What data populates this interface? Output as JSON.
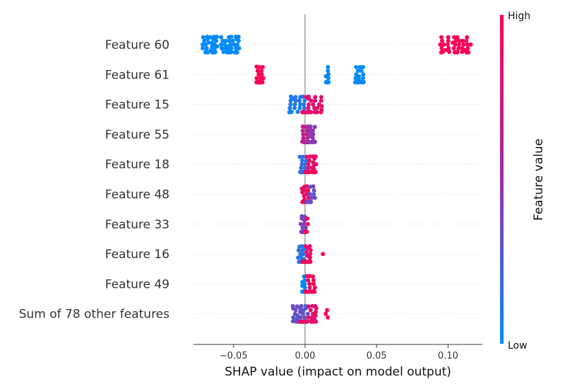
{
  "chart_data": {
    "type": "scatter",
    "subtype": "beeswarm",
    "xlabel": "SHAP value (impact on model output)",
    "xlim": [
      -0.078,
      0.124
    ],
    "xticks": [
      -0.05,
      0.0,
      0.05,
      0.1
    ],
    "xtick_labels": [
      "−0.05",
      "0.00",
      "0.05",
      "0.10"
    ],
    "grid": false,
    "colorbar": {
      "label": "Feature value",
      "high_label": "High",
      "low_label": "Low",
      "low_color": "#008bfb",
      "high_color": "#ff0052",
      "mid_color": "#9b2fa8"
    },
    "features": [
      {
        "name": "Feature 60",
        "groups": [
          {
            "x_min": -0.072,
            "x_max": -0.046,
            "n": 70,
            "color_value": 0.0
          },
          {
            "x_min": 0.094,
            "x_max": 0.116,
            "n": 45,
            "color_value": 1.0
          }
        ]
      },
      {
        "name": "Feature 61",
        "groups": [
          {
            "x_min": -0.034,
            "x_max": -0.029,
            "n": 40,
            "color_value": 1.0
          },
          {
            "x_min": 0.0145,
            "x_max": 0.0165,
            "n": 25,
            "color_value": 0.0
          },
          {
            "x_min": 0.035,
            "x_max": 0.041,
            "n": 30,
            "color_value": 0.0
          }
        ]
      },
      {
        "name": "Feature 15",
        "groups": [
          {
            "x_min": -0.011,
            "x_max": 0.0,
            "n": 25,
            "color_value": 0.1
          },
          {
            "x_min": -0.002,
            "x_max": 0.012,
            "n": 40,
            "color_value": 0.85
          }
        ]
      },
      {
        "name": "Feature 55",
        "groups": [
          {
            "x_min": -0.002,
            "x_max": 0.002,
            "n": 25,
            "color_value": 0.65
          },
          {
            "x_min": 0.002,
            "x_max": 0.007,
            "n": 18,
            "color_value": 0.45
          }
        ]
      },
      {
        "name": "Feature 18",
        "groups": [
          {
            "x_min": -0.004,
            "x_max": 0.001,
            "n": 25,
            "color_value": 0.15
          },
          {
            "x_min": 0.0,
            "x_max": 0.008,
            "n": 35,
            "color_value": 0.9
          }
        ]
      },
      {
        "name": "Feature 48",
        "groups": [
          {
            "x_min": -0.003,
            "x_max": 0.003,
            "n": 35,
            "color_value": 0.9
          },
          {
            "x_min": 0.001,
            "x_max": 0.007,
            "n": 15,
            "color_value": 0.35
          }
        ]
      },
      {
        "name": "Feature 33",
        "groups": [
          {
            "x_min": -0.003,
            "x_max": 0.001,
            "n": 25,
            "color_value": 0.4
          },
          {
            "x_min": 0.0,
            "x_max": 0.002,
            "n": 10,
            "color_value": 0.95
          }
        ]
      },
      {
        "name": "Feature 16",
        "groups": [
          {
            "x_min": -0.005,
            "x_max": 0.0,
            "n": 25,
            "color_value": 0.1
          },
          {
            "x_min": -0.002,
            "x_max": 0.004,
            "n": 35,
            "color_value": 0.9
          },
          {
            "x_min": 0.012,
            "x_max": 0.013,
            "n": 1,
            "color_value": 1.0
          }
        ]
      },
      {
        "name": "Feature 49",
        "groups": [
          {
            "x_min": -0.002,
            "x_max": 0.0,
            "n": 30,
            "color_value": 0.0
          },
          {
            "x_min": 0.0,
            "x_max": 0.007,
            "n": 25,
            "color_value": 0.95
          }
        ]
      },
      {
        "name": "Sum of 78 other features",
        "groups": [
          {
            "x_min": -0.009,
            "x_max": 0.002,
            "n": 30,
            "color_value": 0.3
          },
          {
            "x_min": -0.004,
            "x_max": 0.008,
            "n": 35,
            "color_value": 0.85
          },
          {
            "x_min": 0.011,
            "x_max": 0.018,
            "n": 3,
            "color_value": 1.0
          }
        ]
      }
    ]
  }
}
